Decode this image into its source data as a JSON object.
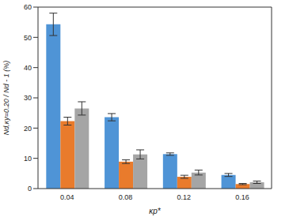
{
  "chart_data": {
    "type": "bar",
    "x_label": "κp*",
    "y_label": "Nd,κy=0.20 / Nd - 1 (%)",
    "categories": [
      "0.04",
      "0.08",
      "0.12",
      "0.16"
    ],
    "series": [
      {
        "color": "#4f94d6",
        "values": [
          54.3,
          23.6,
          11.4,
          4.5
        ],
        "errors": [
          3.7,
          1.2,
          0.4,
          0.5
        ]
      },
      {
        "color": "#e97b2c",
        "values": [
          22.3,
          8.9,
          3.9,
          1.5
        ],
        "errors": [
          1.3,
          0.6,
          0.5,
          0.2
        ]
      },
      {
        "color": "#a5a5a5",
        "values": [
          26.5,
          11.3,
          5.3,
          2.1
        ],
        "errors": [
          2.2,
          1.5,
          0.8,
          0.4
        ]
      }
    ],
    "ylim": [
      0,
      60
    ],
    "yticks": [
      0,
      10,
      20,
      30,
      40,
      50,
      60
    ]
  }
}
